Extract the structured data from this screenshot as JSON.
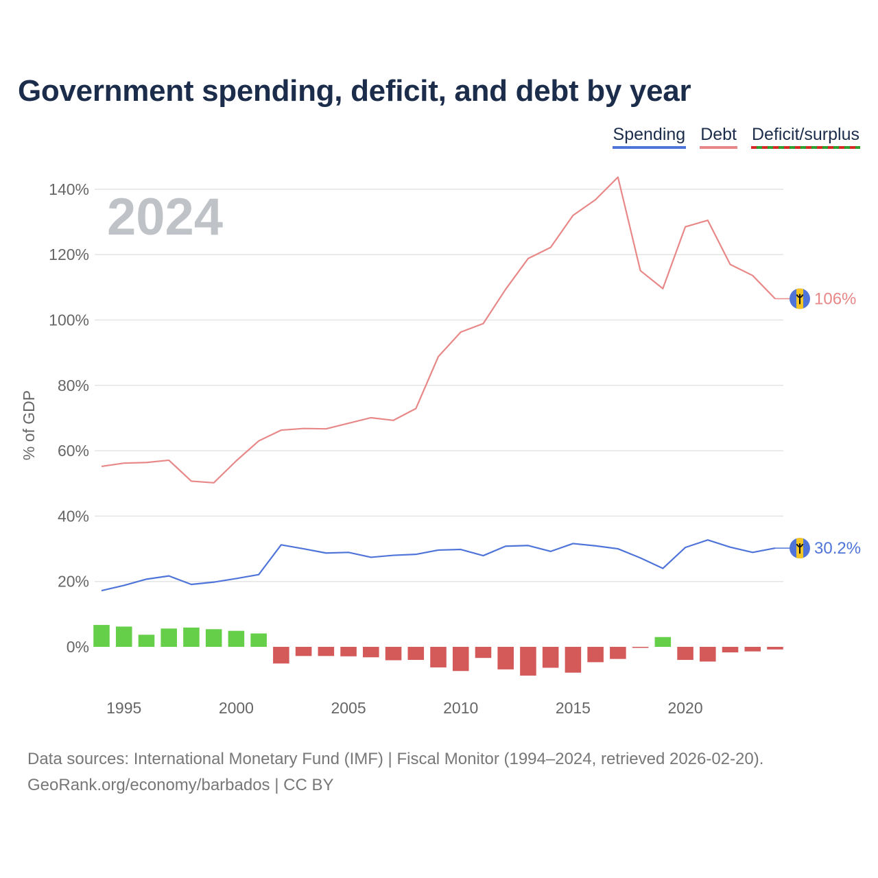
{
  "chart_data": {
    "type": "line",
    "title": "Government spending, deficit, and debt by year",
    "year_label": "2024",
    "ylabel": "% of GDP",
    "xlabel": "",
    "ylim": [
      -10,
      145
    ],
    "yticks": [
      0,
      20,
      40,
      60,
      80,
      100,
      120,
      140
    ],
    "ytick_labels": [
      "0%",
      "20%",
      "40%",
      "60%",
      "80%",
      "100%",
      "120%",
      "140%"
    ],
    "xticks": [
      1995,
      2000,
      2005,
      2010,
      2015,
      2020
    ],
    "xtick_labels": [
      "1995",
      "2000",
      "2005",
      "2010",
      "2015",
      "2020"
    ],
    "grid": true,
    "legend": {
      "position": "top-right",
      "entries": [
        "Spending",
        "Debt",
        "Deficit/surplus"
      ]
    },
    "x": [
      1994,
      1995,
      1996,
      1997,
      1998,
      1999,
      2000,
      2001,
      2002,
      2003,
      2004,
      2005,
      2006,
      2007,
      2008,
      2009,
      2010,
      2011,
      2012,
      2013,
      2014,
      2015,
      2016,
      2017,
      2018,
      2019,
      2020,
      2021,
      2022,
      2023,
      2024
    ],
    "series": [
      {
        "name": "Spending",
        "type": "line",
        "color": "#4f74d9",
        "values": [
          17.2,
          18.8,
          20.7,
          21.7,
          19.1,
          19.8,
          20.9,
          22.1,
          31.2,
          30.0,
          28.7,
          28.9,
          27.4,
          28.0,
          28.3,
          29.6,
          29.8,
          27.9,
          30.8,
          31.0,
          29.2,
          31.6,
          30.9,
          30.0,
          27.2,
          24.0,
          30.4,
          32.7,
          30.5,
          28.9,
          30.2
        ],
        "end_label": "30.2%"
      },
      {
        "name": "Debt",
        "type": "line",
        "color": "#e88787",
        "values": [
          55.2,
          56.2,
          56.4,
          57.1,
          50.7,
          50.2,
          56.9,
          63.0,
          66.3,
          66.8,
          66.7,
          68.4,
          70.1,
          69.3,
          72.9,
          88.8,
          96.3,
          98.9,
          109.4,
          118.8,
          122.2,
          132.0,
          136.8,
          143.7,
          115.1,
          109.6,
          128.5,
          130.5,
          117.0,
          113.6,
          106.5
        ],
        "end_label": "106%"
      },
      {
        "name": "Deficit/surplus",
        "type": "bar",
        "color_positive": "#66cf4a",
        "color_negative": "#d45a5a",
        "values": [
          6.7,
          6.2,
          3.7,
          5.6,
          5.9,
          5.4,
          4.9,
          4.1,
          -5.1,
          -2.8,
          -2.8,
          -2.9,
          -3.2,
          -4.1,
          -4.0,
          -6.3,
          -7.4,
          -3.4,
          -6.9,
          -8.8,
          -6.4,
          -7.9,
          -4.7,
          -3.7,
          -0.3,
          3.0,
          -4.0,
          -4.5,
          -1.7,
          -1.4,
          -0.8
        ]
      }
    ]
  },
  "footer": {
    "line1": "Data sources: International Monetary Fund (IMF) | Fiscal Monitor (1994–2024, retrieved 2026-02-20).",
    "line2": "GeoRank.org/economy/barbados | CC BY"
  },
  "colors": {
    "title": "#1b2d4b",
    "grid": "#e4e4e4",
    "axis_text": "#666666",
    "year_label": "#bfc2c6",
    "flag_blue": "#4f74d9",
    "flag_gold": "#f5c623"
  },
  "icons": {
    "end_marker": "barbados-flag-icon"
  }
}
